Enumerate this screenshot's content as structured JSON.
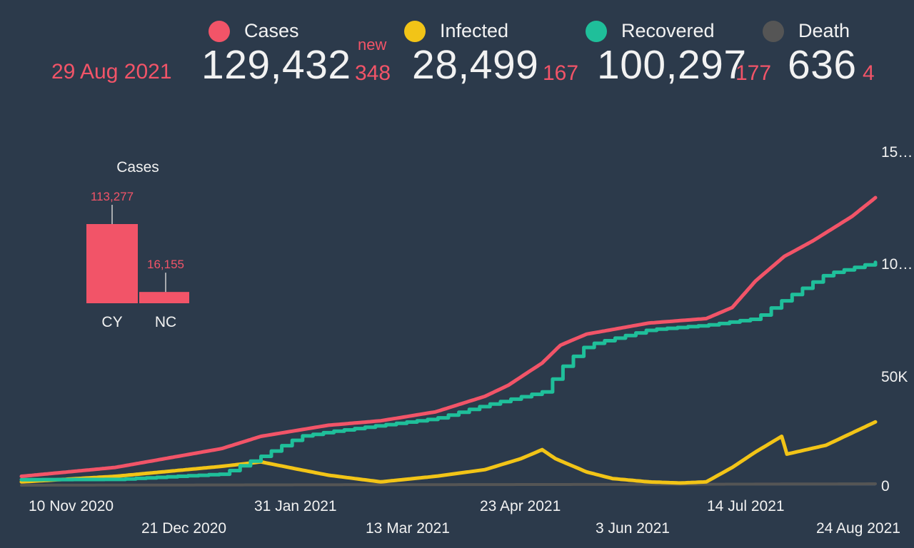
{
  "header": {
    "date": "29 Aug 2021",
    "new_label": "new",
    "stats": [
      {
        "key": "cases",
        "label": "Cases",
        "color": "#f25468",
        "total": "129,432",
        "new": "348"
      },
      {
        "key": "infected",
        "label": "Infected",
        "color": "#f2c417",
        "total": "28,499",
        "new": "167"
      },
      {
        "key": "recovered",
        "label": "Recovered",
        "color": "#1fbf9a",
        "total": "100,297",
        "new": "177"
      },
      {
        "key": "death",
        "label": "Death",
        "color": "#555555",
        "total": "636",
        "new": "4"
      }
    ]
  },
  "chart_data": [
    {
      "type": "line",
      "title": "",
      "xlabel": "",
      "ylabel": "",
      "x_ticks_row1": [
        "10 Nov 2020",
        "31 Jan 2021",
        "23 Apr 2021",
        "14 Jul 2021"
      ],
      "x_ticks_row2": [
        "21 Dec 2020",
        "13 Mar 2021",
        "3 Jun 2021",
        "24 Aug 2021"
      ],
      "y_ticks": [
        "0",
        "50K",
        "10…",
        "15…"
      ],
      "ylim": [
        0,
        150000
      ],
      "x_range": [
        "2020-10-05",
        "2021-08-29"
      ],
      "series": [
        {
          "name": "Cases",
          "color": "#f25468",
          "step": false,
          "points": [
            [
              "2020-10-05",
              4000
            ],
            [
              "2020-11-10",
              8000
            ],
            [
              "2020-12-21",
              16500
            ],
            [
              "2021-01-05",
              22000
            ],
            [
              "2021-01-31",
              27000
            ],
            [
              "2021-02-20",
              29000
            ],
            [
              "2021-03-13",
              33000
            ],
            [
              "2021-04-01",
              40000
            ],
            [
              "2021-04-10",
              45000
            ],
            [
              "2021-04-23",
              55000
            ],
            [
              "2021-04-30",
              63000
            ],
            [
              "2021-05-10",
              68000
            ],
            [
              "2021-06-03",
              73000
            ],
            [
              "2021-06-25",
              75000
            ],
            [
              "2021-07-05",
              80000
            ],
            [
              "2021-07-14",
              92000
            ],
            [
              "2021-07-25",
              103000
            ],
            [
              "2021-08-05",
              110000
            ],
            [
              "2021-08-20",
              121000
            ],
            [
              "2021-08-29",
              129432
            ]
          ]
        },
        {
          "name": "Recovered",
          "color": "#1fbf9a",
          "step": true,
          "points": [
            [
              "2020-10-05",
              2500
            ],
            [
              "2020-11-10",
              2600
            ],
            [
              "2020-12-21",
              5000
            ],
            [
              "2021-01-05",
              13000
            ],
            [
              "2021-01-20",
              22000
            ],
            [
              "2021-01-31",
              24000
            ],
            [
              "2021-02-20",
              27000
            ],
            [
              "2021-03-13",
              30000
            ],
            [
              "2021-04-01",
              36000
            ],
            [
              "2021-04-23",
              42000
            ],
            [
              "2021-05-02",
              55000
            ],
            [
              "2021-05-10",
              63000
            ],
            [
              "2021-06-03",
              70000
            ],
            [
              "2021-06-25",
              72000
            ],
            [
              "2021-07-14",
              75000
            ],
            [
              "2021-07-24",
              83000
            ],
            [
              "2021-08-10",
              95000
            ],
            [
              "2021-08-29",
              100297
            ]
          ]
        },
        {
          "name": "Infected",
          "color": "#f2c417",
          "step": false,
          "points": [
            [
              "2020-10-05",
              1500
            ],
            [
              "2020-11-10",
              4000
            ],
            [
              "2020-12-21",
              8500
            ],
            [
              "2021-01-05",
              10500
            ],
            [
              "2021-01-20",
              7000
            ],
            [
              "2021-01-31",
              4500
            ],
            [
              "2021-02-20",
              1500
            ],
            [
              "2021-03-13",
              4000
            ],
            [
              "2021-04-01",
              7000
            ],
            [
              "2021-04-15",
              12000
            ],
            [
              "2021-04-23",
              16000
            ],
            [
              "2021-04-28",
              12000
            ],
            [
              "2021-05-10",
              6000
            ],
            [
              "2021-05-20",
              3000
            ],
            [
              "2021-06-03",
              1500
            ],
            [
              "2021-06-15",
              1000
            ],
            [
              "2021-06-25",
              1500
            ],
            [
              "2021-07-05",
              8000
            ],
            [
              "2021-07-14",
              15000
            ],
            [
              "2021-07-24",
              22000
            ],
            [
              "2021-07-26",
              14000
            ],
            [
              "2021-08-10",
              18000
            ],
            [
              "2021-08-29",
              28499
            ]
          ]
        },
        {
          "name": "Death",
          "color": "#555555",
          "step": false,
          "points": [
            [
              "2020-10-05",
              0
            ],
            [
              "2021-01-31",
              200
            ],
            [
              "2021-06-03",
              380
            ],
            [
              "2021-08-29",
              636
            ]
          ]
        }
      ]
    },
    {
      "type": "bar",
      "title": "Cases",
      "categories": [
        "CY",
        "NC"
      ],
      "values": [
        113277,
        16155
      ],
      "value_labels": [
        "113,277",
        "16,155"
      ],
      "color": "#f25468",
      "ylim": [
        0,
        113277
      ]
    }
  ]
}
